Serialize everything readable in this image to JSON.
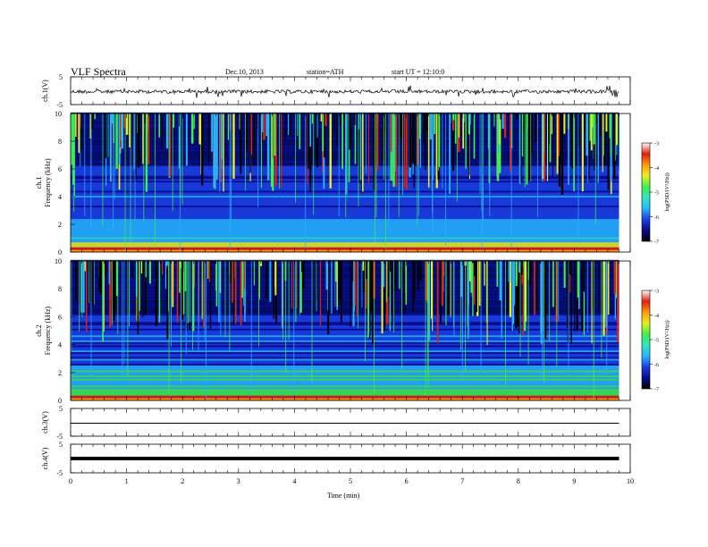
{
  "header": {
    "title": "VLF  Spectra",
    "date": "Dec.10, 2013",
    "station": "station=ATH",
    "start": "start  UT  =   12:10:0"
  },
  "colors": {
    "trace": "#000000",
    "axis": "#000000",
    "background": "#ffffff",
    "colormap": [
      "#000000",
      "#0a0a8c",
      "#1b3fe0",
      "#27b4ff",
      "#35e6c0",
      "#3ff04a",
      "#e9f020",
      "#ff9a10",
      "#e02010",
      "#ffffff"
    ]
  },
  "chart_data": [
    {
      "type": "line",
      "panel": "ch1-wave",
      "ylabel": "ch.1(V)",
      "ylim": [
        -5,
        5
      ],
      "ytick_labels": [
        "5",
        "-5"
      ],
      "baseline": 0,
      "x_range": [
        0,
        9.8
      ],
      "grid": false
    },
    {
      "type": "heatmap",
      "panel": "ch1-spectrogram",
      "ylabel": "ch.1 Frequency (kHz)",
      "ylim": [
        0,
        10
      ],
      "yticks": [
        0,
        2,
        4,
        6,
        8,
        10
      ],
      "x_range": [
        0,
        9.8
      ],
      "colorbar": {
        "label": "log(PSD/(V²/Hz))",
        "range": [
          -7,
          -3
        ],
        "ticks": [
          "-3",
          "-4",
          "-5",
          "-6",
          "-7"
        ]
      },
      "grid": false
    },
    {
      "type": "heatmap",
      "panel": "ch2-spectrogram",
      "ylabel": "ch.2 Frequency (kHz)",
      "ylim": [
        0,
        10
      ],
      "yticks": [
        0,
        2,
        4,
        6,
        8,
        10
      ],
      "x_range": [
        0,
        9.8
      ],
      "colorbar": {
        "label": "log(PSD/(V²/Hz))",
        "range": [
          -7,
          -3
        ],
        "ticks": [
          "-3",
          "-4",
          "-5",
          "-6",
          "-7"
        ]
      },
      "grid": false
    },
    {
      "type": "line",
      "panel": "ch3-wave",
      "ylabel": "ch.3(V)",
      "ylim": [
        -5,
        5
      ],
      "ytick_labels": [
        "5",
        "-5"
      ],
      "baseline": 0,
      "x_range": [
        0,
        9.8
      ],
      "grid": false
    },
    {
      "type": "line",
      "panel": "ch4-wave",
      "ylabel": "ch.4(V)",
      "ylim": [
        -5,
        5
      ],
      "ytick_labels": [
        "5",
        "-5"
      ],
      "baseline": 0,
      "x_range": [
        0,
        9.8
      ],
      "grid": false
    }
  ],
  "x_axis": {
    "label": "Time  (min)",
    "xlim": [
      0,
      10
    ],
    "ticks": [
      "0",
      "1",
      "2",
      "3",
      "4",
      "5",
      "6",
      "7",
      "8",
      "9",
      "10"
    ]
  }
}
